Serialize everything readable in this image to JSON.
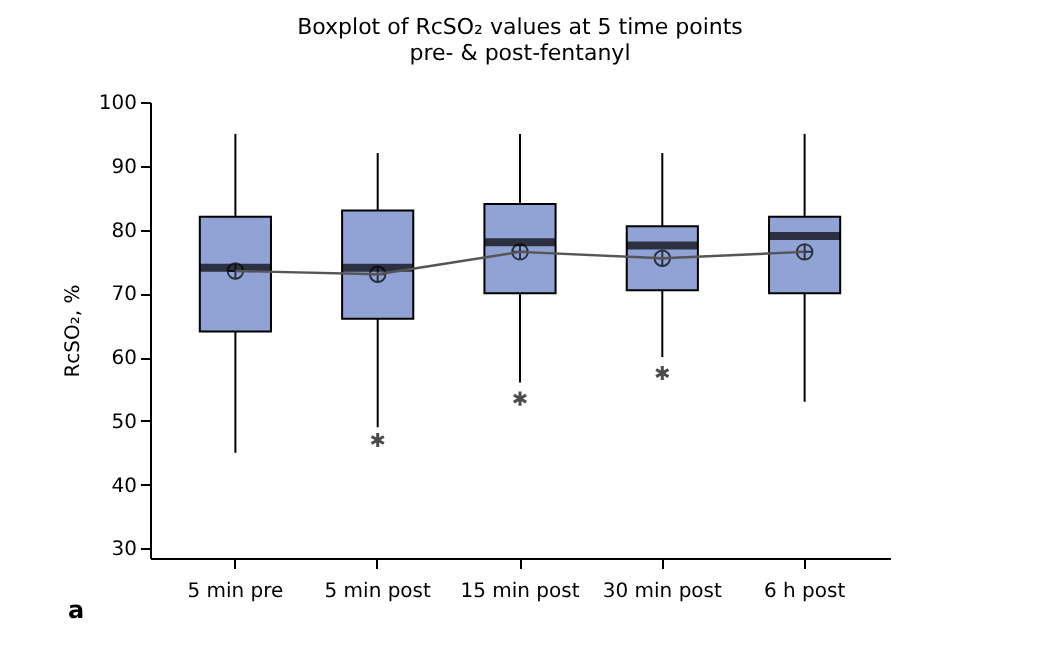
{
  "chart_data": {
    "type": "box",
    "title": "Boxplot of RcSO₂ values at 5 time points",
    "subtitle": "pre- & post-fentanyl",
    "ylabel": "RcSO₂, %",
    "categories": [
      "5 min pre",
      "5 min post",
      "15 min post",
      "30 min post",
      "6 h post"
    ],
    "color": "#91a3d5",
    "boxes": [
      {
        "low": 45,
        "q1": 64,
        "median": 74,
        "q3": 82,
        "high": 95,
        "mean": 73.5
      },
      {
        "low": 49,
        "q1": 66,
        "median": 74,
        "q3": 83,
        "high": 92,
        "mean": 73,
        "outliers": [
          47
        ]
      },
      {
        "low": 56,
        "q1": 70,
        "median": 78,
        "q3": 84,
        "high": 95,
        "mean": 76.5,
        "outliers": [
          53.5
        ]
      },
      {
        "low": 60,
        "q1": 70.5,
        "median": 77.5,
        "q3": 80.5,
        "high": 92,
        "mean": 75.5,
        "outliers": [
          57.5
        ]
      },
      {
        "low": 53,
        "q1": 70,
        "median": 79,
        "q3": 82,
        "high": 95,
        "mean": 76.5
      }
    ],
    "series": [
      {
        "type": "line",
        "color": "#555555",
        "values": [
          73.5,
          73,
          76.5,
          75.5,
          76.5
        ]
      }
    ],
    "ylim": [
      28.5,
      100
    ],
    "yticks": [
      30,
      40,
      50,
      60,
      70,
      80,
      90,
      100
    ],
    "grid": false,
    "annotations": [
      "a"
    ]
  }
}
